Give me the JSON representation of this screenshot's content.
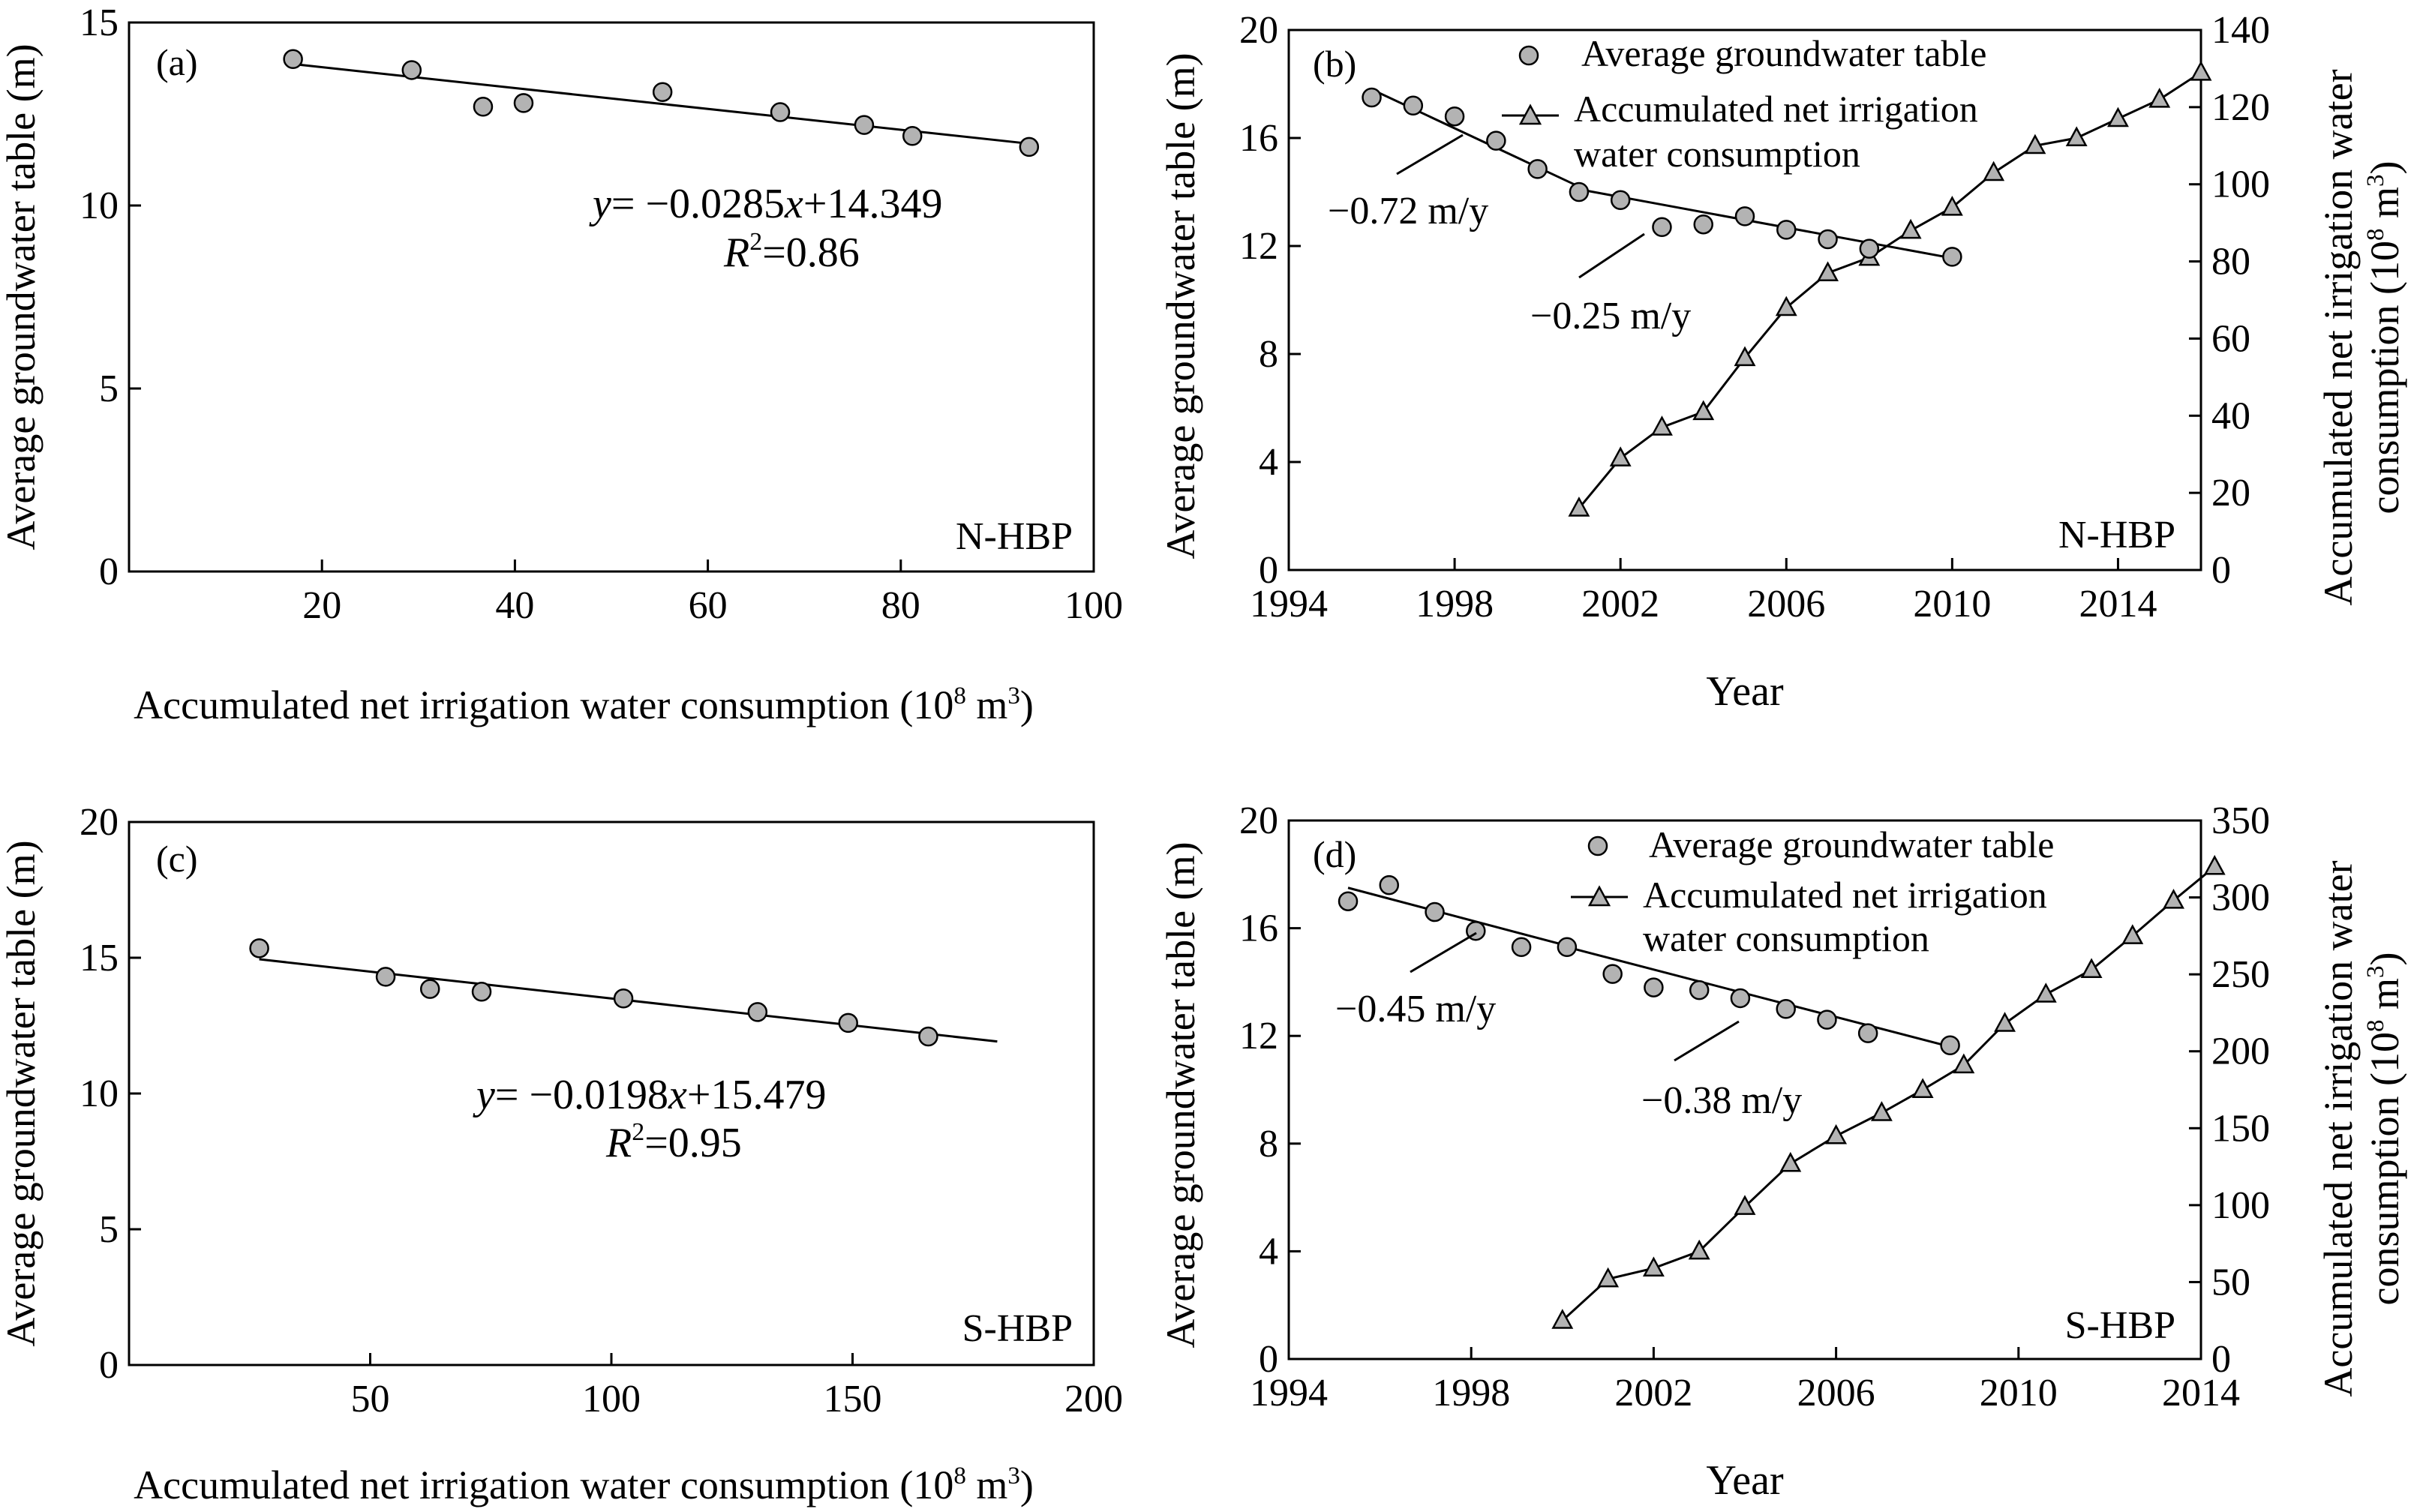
{
  "chart_data": [
    {
      "panel": "(a)",
      "type": "scatter",
      "xlabel": "Accumulated net irrigation water consumption (10⁸ m³)",
      "ylabel": "Average groundwater table (m)",
      "xlim": [
        0,
        100
      ],
      "ylim": [
        0,
        15
      ],
      "xticks": [
        20,
        40,
        60,
        80,
        100
      ],
      "yticks": [
        0,
        5,
        10,
        15
      ],
      "points": [
        {
          "x": 17,
          "y": 14.0
        },
        {
          "x": 29.3,
          "y": 13.7
        },
        {
          "x": 36.7,
          "y": 12.7
        },
        {
          "x": 40.9,
          "y": 12.8
        },
        {
          "x": 55.3,
          "y": 13.1
        },
        {
          "x": 67.5,
          "y": 12.55
        },
        {
          "x": 76.2,
          "y": 12.2
        },
        {
          "x": 81.2,
          "y": 11.9
        },
        {
          "x": 93.3,
          "y": 11.6
        }
      ],
      "fit": {
        "slope": -0.0285,
        "intercept": 14.349,
        "x_range": [
          17,
          93.5
        ]
      },
      "equation_prefix": "y",
      "equation_rhs": "= −0.0285",
      "equation_var": "x",
      "equation_tail": "+14.349",
      "r2_prefix": "R",
      "r2_sup": "2",
      "r2_value": "=0.86",
      "region": "N-HBP"
    },
    {
      "panel": "(b)",
      "type": "line",
      "xlabel": "Year",
      "ylabel": "Average groundwater table (m)",
      "y2label_line1": "Accumulated net irrigation water",
      "y2label_line2": "consumption (10⁸ m³)",
      "xlim": [
        1994,
        2016
      ],
      "ylim": [
        0,
        20
      ],
      "y2lim": [
        0,
        140
      ],
      "xticks": [
        1994,
        1998,
        2002,
        2006,
        2010,
        2014
      ],
      "yticks": [
        0,
        4,
        8,
        12,
        16,
        20
      ],
      "y2ticks": [
        0,
        20,
        40,
        60,
        80,
        100,
        120,
        140
      ],
      "series": [
        {
          "name": "Average groundwater table",
          "axis": "left",
          "marker": "circle",
          "x": [
            1996,
            1997,
            1998,
            1999,
            2000,
            2001,
            2002,
            2003,
            2004,
            2005,
            2006,
            2007,
            2008,
            2010
          ],
          "values": [
            17.5,
            17.2,
            16.8,
            15.9,
            14.85,
            14.0,
            13.7,
            12.7,
            12.8,
            13.1,
            12.6,
            12.25,
            11.9,
            11.6
          ]
        },
        {
          "name": "Accumulated net irrigation water consumption",
          "axis": "right",
          "marker": "triangle",
          "x": [
            2001,
            2002,
            2003,
            2004,
            2005,
            2006,
            2007,
            2008,
            2009,
            2010,
            2011,
            2012,
            2013,
            2014,
            2015,
            2016
          ],
          "values": [
            16,
            29,
            37,
            41,
            55,
            68,
            77,
            81,
            88,
            94,
            103,
            110,
            112,
            117,
            122,
            129
          ]
        }
      ],
      "trend_lines": [
        {
          "x": [
            1996,
            2001
          ],
          "y": [
            17.8,
            14.2
          ]
        },
        {
          "x": [
            2001,
            2010
          ],
          "y": [
            14.1,
            11.55
          ]
        }
      ],
      "trend_labels": [
        "−0.72 m/y",
        "−0.25 m/y"
      ],
      "region": "N-HBP"
    },
    {
      "panel": "(c)",
      "type": "scatter",
      "xlabel": "Accumulated net irrigation water consumption (10⁸ m³)",
      "ylabel": "Average groundwater table (m)",
      "xlim": [
        0,
        200
      ],
      "ylim": [
        0,
        20
      ],
      "xticks": [
        50,
        100,
        150,
        200
      ],
      "yticks": [
        0,
        5,
        10,
        15,
        20
      ],
      "points": [
        {
          "x": 27,
          "y": 15.35
        },
        {
          "x": 53.2,
          "y": 14.3
        },
        {
          "x": 62.4,
          "y": 13.85
        },
        {
          "x": 73.1,
          "y": 13.75
        },
        {
          "x": 102.5,
          "y": 13.5
        },
        {
          "x": 130.3,
          "y": 13.0
        },
        {
          "x": 149.1,
          "y": 12.6
        },
        {
          "x": 165.7,
          "y": 12.1
        }
      ],
      "fit": {
        "slope": -0.0198,
        "intercept": 15.479,
        "x_range": [
          27,
          180
        ]
      },
      "equation_prefix": "y",
      "equation_rhs": "= −0.0198",
      "equation_var": "x",
      "equation_tail": "+15.479",
      "r2_prefix": "R",
      "r2_sup": "2",
      "r2_value": "=0.95",
      "region": "S-HBP"
    },
    {
      "panel": "(d)",
      "type": "line",
      "xlabel": "Year",
      "ylabel": "Average groundwater table (m)",
      "y2label_line1": "Accumulated net irrigation water",
      "y2label_line2": "consumption (10⁸ m³)",
      "xlim": [
        1994,
        2014
      ],
      "ylim": [
        0,
        20
      ],
      "y2lim": [
        0,
        350
      ],
      "xticks": [
        1994,
        1998,
        2002,
        2006,
        2010,
        2014
      ],
      "yticks": [
        0,
        4,
        8,
        12,
        16,
        20
      ],
      "y2ticks": [
        0,
        50,
        100,
        150,
        200,
        250,
        300,
        350
      ],
      "series": [
        {
          "name": "Average groundwater table",
          "axis": "left",
          "marker": "circle",
          "x": [
            1995.3,
            1996.2,
            1997.2,
            1998.1,
            1999.1,
            2000.1,
            2001.1,
            2002.0,
            2003.0,
            2003.9,
            2004.9,
            2005.8,
            2006.7,
            2008.5
          ],
          "values": [
            17.0,
            17.6,
            16.6,
            15.9,
            15.3,
            15.3,
            14.3,
            13.8,
            13.7,
            13.4,
            13.0,
            12.6,
            12.1,
            11.65
          ]
        },
        {
          "name": "Accumulated net irrigation water consumption",
          "axis": "right",
          "marker": "triangle",
          "x": [
            2000.0,
            2001.0,
            2002.0,
            2003.0,
            2004.0,
            2005.0,
            2006.0,
            2007.0,
            2007.9,
            2008.8,
            2009.7,
            2010.6,
            2011.6,
            2012.5,
            2013.4,
            2014.3
          ],
          "values": [
            25,
            52,
            59,
            70,
            99,
            127,
            145,
            160,
            175,
            191,
            218,
            237,
            253,
            275,
            298,
            320
          ]
        }
      ],
      "trend_lines": [
        {
          "x": [
            1995.3,
            2000.1
          ],
          "y": [
            17.5,
            15.35
          ]
        },
        {
          "x": [
            2000.1,
            2008.5
          ],
          "y": [
            15.3,
            11.6
          ]
        }
      ],
      "trend_labels": [
        "−0.45 m/y",
        "−0.38 m/y"
      ],
      "region": "S-HBP"
    }
  ]
}
